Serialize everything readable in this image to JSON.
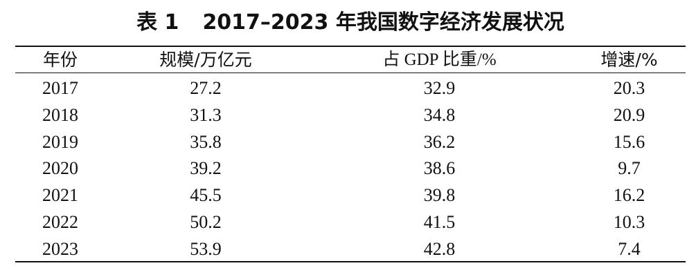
{
  "table": {
    "title_label": "表 1",
    "title_text": "2017–2023 年我国数字经济发展状况",
    "headers": [
      "年份",
      "规模/万亿元",
      "占 GDP 比重/%",
      "增速/%"
    ],
    "rows": [
      [
        "2017",
        "27.2",
        "32.9",
        "20.3"
      ],
      [
        "2018",
        "31.3",
        "34.8",
        "20.9"
      ],
      [
        "2019",
        "35.8",
        "36.2",
        "15.6"
      ],
      [
        "2020",
        "39.2",
        "38.6",
        "9.7"
      ],
      [
        "2021",
        "45.5",
        "39.8",
        "16.2"
      ],
      [
        "2022",
        "50.2",
        "41.5",
        "10.3"
      ],
      [
        "2023",
        "53.9",
        "42.8",
        "7.4"
      ]
    ]
  }
}
